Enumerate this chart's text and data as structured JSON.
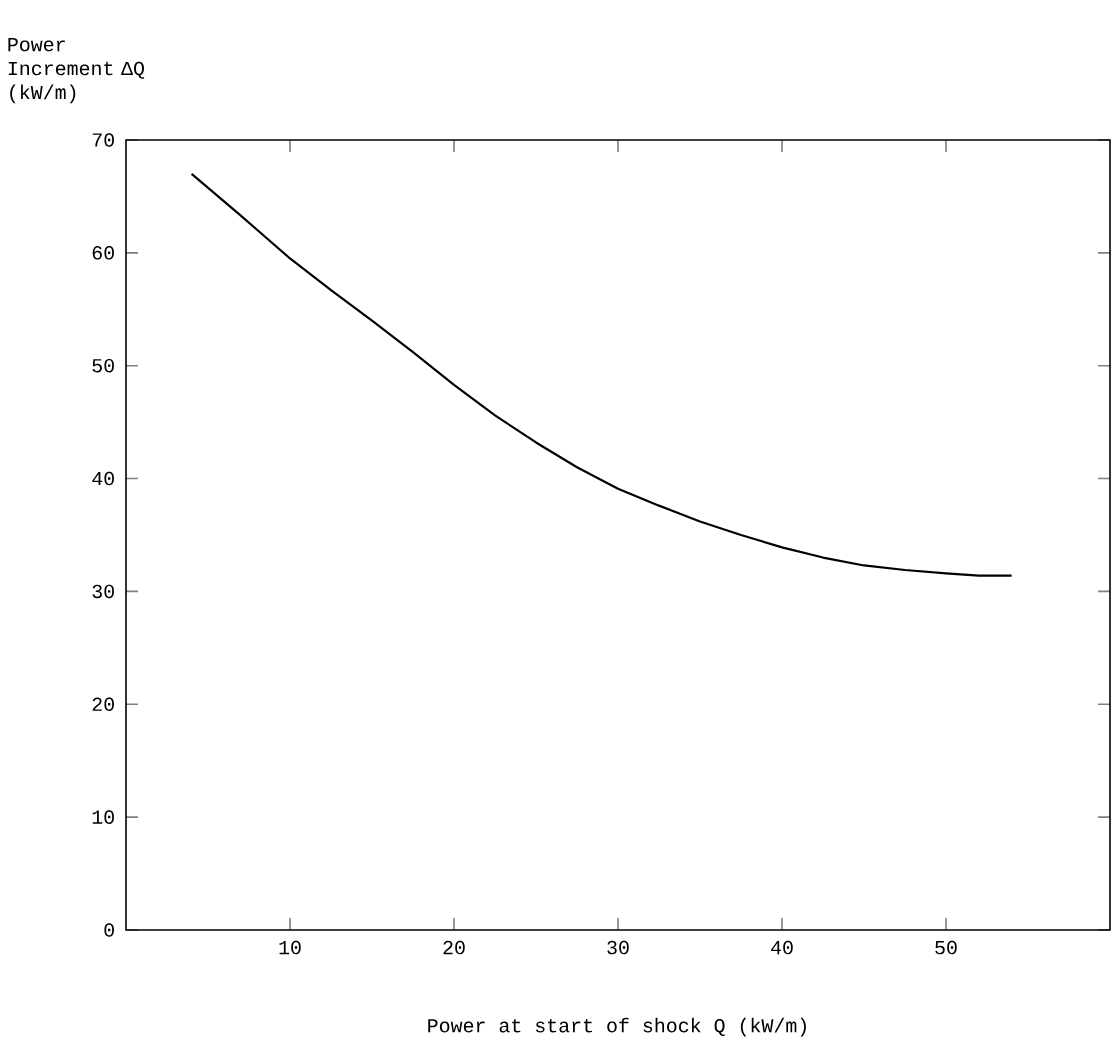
{
  "chart_data": {
    "type": "line",
    "xlabel": "Power at start of shock Q (kW/m)",
    "ylabel": "Power Increment ΔQ (kW/m)",
    "x": [
      4,
      7,
      10,
      12.5,
      15,
      17.5,
      20,
      22.5,
      25,
      27.5,
      30,
      32.5,
      35,
      37.5,
      40,
      42.5,
      45,
      47.5,
      50,
      52,
      54
    ],
    "values": [
      67,
      63.3,
      59.5,
      56.7,
      54,
      51.2,
      48.3,
      45.6,
      43.2,
      41,
      39.1,
      37.6,
      36.2,
      35,
      33.9,
      33,
      32.3,
      31.9,
      31.6,
      31.4,
      31.4
    ],
    "color": "#000000",
    "xlim": [
      0,
      60
    ],
    "ylim": [
      0,
      70
    ],
    "xticks": [
      10,
      20,
      30,
      40,
      50
    ],
    "yticks": [
      0,
      10,
      20,
      30,
      40,
      50,
      60,
      70
    ],
    "grid": false,
    "marker": "none",
    "line_style": "solid"
  }
}
